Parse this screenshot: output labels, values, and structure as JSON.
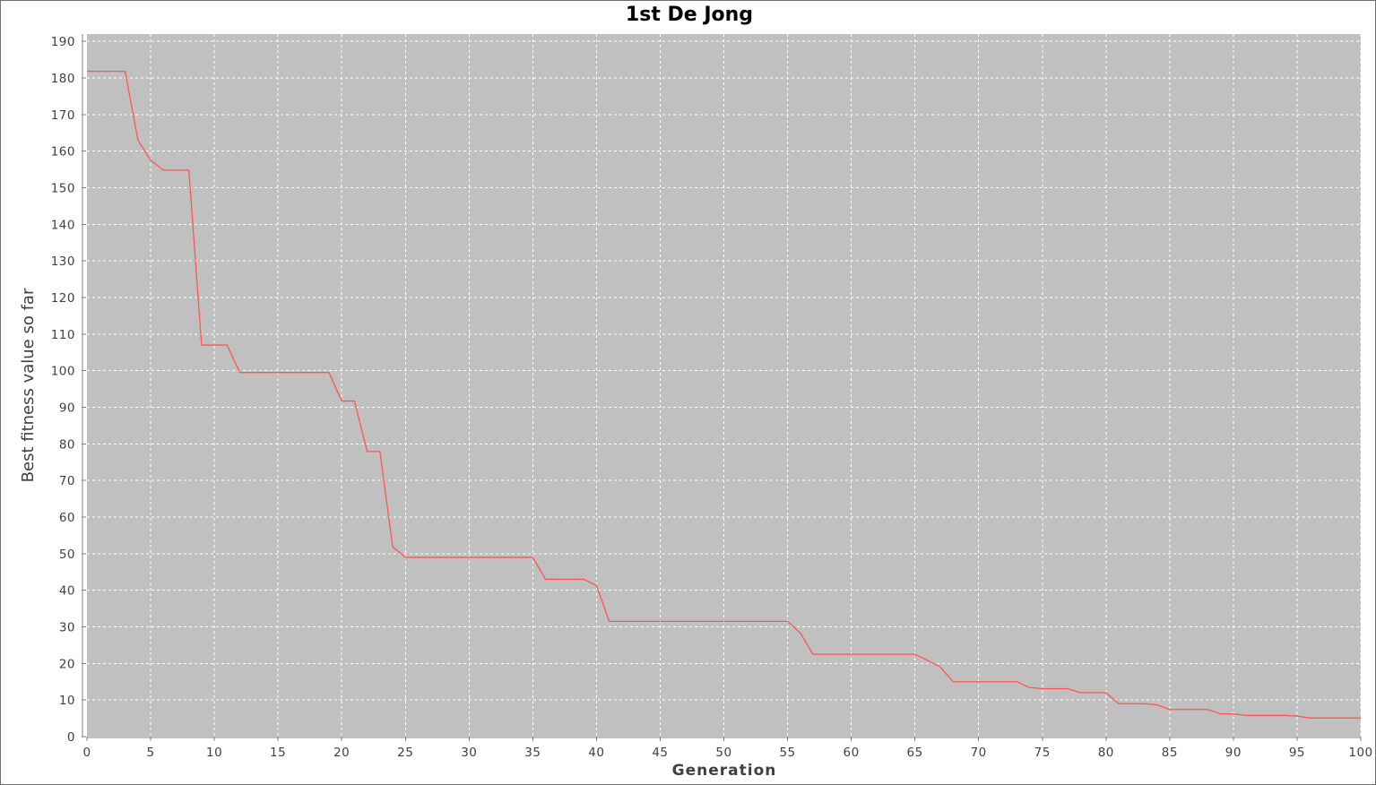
{
  "chart_data": {
    "type": "line",
    "title": "1st De Jong",
    "xlabel": "Generation",
    "ylabel": "Best fitness value so far",
    "xlim": [
      0,
      100
    ],
    "ylim": [
      0,
      192
    ],
    "x_ticks": [
      0,
      5,
      10,
      15,
      20,
      25,
      30,
      35,
      40,
      45,
      50,
      55,
      60,
      65,
      70,
      75,
      80,
      85,
      90,
      95,
      100
    ],
    "y_ticks": [
      0,
      10,
      20,
      30,
      40,
      50,
      60,
      70,
      80,
      90,
      100,
      110,
      120,
      130,
      140,
      150,
      160,
      170,
      180,
      190
    ],
    "grid": true,
    "legend": "none",
    "colors": {
      "plot_background": "#c0c0c0",
      "line": "#ff5555",
      "grid": "#ffffff"
    },
    "series": [
      {
        "x": [
          0,
          1,
          2,
          3,
          4,
          5,
          6,
          7,
          8,
          9,
          10,
          11,
          12,
          13,
          14,
          15,
          16,
          17,
          18,
          19,
          20,
          21,
          22,
          23,
          24,
          25,
          26,
          27,
          28,
          29,
          30,
          31,
          32,
          33,
          34,
          35,
          36,
          37,
          38,
          39,
          40,
          41,
          42,
          43,
          44,
          45,
          46,
          47,
          48,
          49,
          50,
          51,
          52,
          53,
          54,
          55,
          56,
          57,
          58,
          59,
          60,
          61,
          62,
          63,
          64,
          65,
          66,
          67,
          68,
          69,
          70,
          71,
          72,
          73,
          74,
          75,
          76,
          77,
          78,
          79,
          80,
          81,
          82,
          83,
          84,
          85,
          86,
          87,
          88,
          89,
          90,
          91,
          92,
          93,
          94,
          95,
          96,
          97,
          98,
          99,
          100
        ],
        "y": [
          181.8,
          181.8,
          181.8,
          181.8,
          163.0,
          157.5,
          154.8,
          154.8,
          154.8,
          107.0,
          107.0,
          107.0,
          99.5,
          99.5,
          99.5,
          99.5,
          99.5,
          99.5,
          99.5,
          99.5,
          91.7,
          91.7,
          77.9,
          77.9,
          51.9,
          49.0,
          49.0,
          49.0,
          49.0,
          49.0,
          49.0,
          49.0,
          49.0,
          49.0,
          49.0,
          49.0,
          43.0,
          43.0,
          43.0,
          43.0,
          41.3,
          31.5,
          31.5,
          31.5,
          31.5,
          31.5,
          31.5,
          31.5,
          31.5,
          31.5,
          31.5,
          31.5,
          31.5,
          31.5,
          31.5,
          31.5,
          28.3,
          22.5,
          22.5,
          22.5,
          22.5,
          22.5,
          22.5,
          22.5,
          22.5,
          22.5,
          20.8,
          19.0,
          15.0,
          15.0,
          15.0,
          15.0,
          15.0,
          15.0,
          13.4,
          13.1,
          13.1,
          13.1,
          12.0,
          12.0,
          12.0,
          9.0,
          9.0,
          9.0,
          8.7,
          7.4,
          7.4,
          7.4,
          7.4,
          6.2,
          6.2,
          5.8,
          5.8,
          5.8,
          5.8,
          5.6,
          5.1,
          5.1,
          5.1,
          5.1,
          5.1
        ]
      }
    ]
  }
}
